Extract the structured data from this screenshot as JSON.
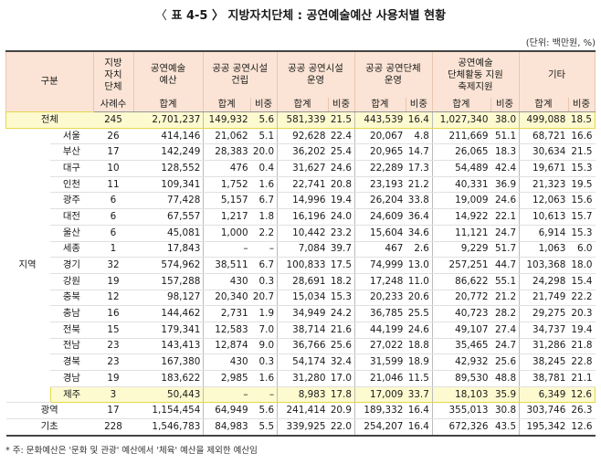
{
  "title": {
    "open": "〈",
    "main": " 표 4-5 〉 지방자치단체 : 공연예술예산 사용처별 현황"
  },
  "unit": "(단위: 백만원, %)",
  "header": {
    "gubun": "구분",
    "count_col": "지방\n자치\n단체",
    "budget_col": "공연예술\n예산",
    "facility_build": "공공 공연시설\n건립",
    "facility_op": "공공 공연시설\n운영",
    "group_op": "공공 공연단체\n운영",
    "support": "공연예술\n단체활동 지원\n축제지원",
    "etc": "기타",
    "sub_count": "사례수",
    "sub_sum": "합계",
    "sub_ratio": "비중"
  },
  "rows": [
    {
      "grp": "전체",
      "name": "",
      "vals": [
        "245",
        "2,701,237",
        "149,932",
        "5.6",
        "581,339",
        "21.5",
        "443,539",
        "16.4",
        "1,027,340",
        "38.0",
        "499,088",
        "18.5"
      ],
      "hl": true,
      "total": true
    },
    {
      "grp": "지역",
      "name": "서울",
      "vals": [
        "26",
        "414,146",
        "21,062",
        "5.1",
        "92,628",
        "22.4",
        "20,067",
        "4.8",
        "211,669",
        "51.1",
        "68,721",
        "16.6"
      ]
    },
    {
      "name": "부산",
      "vals": [
        "17",
        "142,249",
        "28,383",
        "20.0",
        "36,202",
        "25.4",
        "20,965",
        "14.7",
        "26,065",
        "18.3",
        "30,634",
        "21.5"
      ]
    },
    {
      "name": "대구",
      "vals": [
        "10",
        "128,552",
        "476",
        "0.4",
        "31,627",
        "24.6",
        "22,289",
        "17.3",
        "54,489",
        "42.4",
        "19,671",
        "15.3"
      ]
    },
    {
      "name": "인천",
      "vals": [
        "11",
        "109,341",
        "1,752",
        "1.6",
        "22,741",
        "20.8",
        "23,193",
        "21.2",
        "40,331",
        "36.9",
        "21,323",
        "19.5"
      ]
    },
    {
      "name": "광주",
      "vals": [
        "6",
        "77,428",
        "5,157",
        "6.7",
        "14,996",
        "19.4",
        "26,204",
        "33.8",
        "19,009",
        "24.6",
        "12,063",
        "15.6"
      ]
    },
    {
      "name": "대전",
      "vals": [
        "6",
        "67,557",
        "1,217",
        "1.8",
        "16,196",
        "24.0",
        "24,609",
        "36.4",
        "14,922",
        "22.1",
        "10,613",
        "15.7"
      ]
    },
    {
      "name": "울산",
      "vals": [
        "6",
        "45,081",
        "1,000",
        "2.2",
        "10,442",
        "23.2",
        "15,604",
        "34.6",
        "11,121",
        "24.7",
        "6,914",
        "15.3"
      ]
    },
    {
      "name": "세종",
      "vals": [
        "1",
        "17,843",
        "–",
        "–",
        "7,084",
        "39.7",
        "467",
        "2.6",
        "9,229",
        "51.7",
        "1,063",
        "6.0"
      ]
    },
    {
      "name": "경기",
      "vals": [
        "32",
        "574,962",
        "38,511",
        "6.7",
        "100,833",
        "17.5",
        "74,999",
        "13.0",
        "257,251",
        "44.7",
        "103,368",
        "18.0"
      ]
    },
    {
      "name": "강원",
      "vals": [
        "19",
        "157,288",
        "430",
        "0.3",
        "28,691",
        "18.2",
        "17,248",
        "11.0",
        "86,622",
        "55.1",
        "24,298",
        "15.4"
      ]
    },
    {
      "name": "충북",
      "vals": [
        "12",
        "98,127",
        "20,340",
        "20.7",
        "15,034",
        "15.3",
        "20,233",
        "20.6",
        "20,772",
        "21.2",
        "21,749",
        "22.2"
      ]
    },
    {
      "name": "충남",
      "vals": [
        "16",
        "144,462",
        "2,731",
        "1.9",
        "34,949",
        "24.2",
        "36,785",
        "25.5",
        "40,723",
        "28.2",
        "29,275",
        "20.3"
      ]
    },
    {
      "name": "전북",
      "vals": [
        "15",
        "179,341",
        "12,583",
        "7.0",
        "38,714",
        "21.6",
        "44,199",
        "24.6",
        "49,107",
        "27.4",
        "34,737",
        "19.4"
      ]
    },
    {
      "name": "전남",
      "vals": [
        "23",
        "143,413",
        "12,874",
        "9.0",
        "36,766",
        "25.6",
        "27,022",
        "18.8",
        "35,465",
        "24.7",
        "31,286",
        "21.8"
      ]
    },
    {
      "name": "경북",
      "vals": [
        "23",
        "167,380",
        "430",
        "0.3",
        "54,174",
        "32.4",
        "31,599",
        "18.9",
        "42,932",
        "25.6",
        "38,245",
        "22.8"
      ]
    },
    {
      "name": "경남",
      "vals": [
        "19",
        "183,622",
        "2,985",
        "1.6",
        "31,280",
        "17.0",
        "21,046",
        "11.5",
        "89,530",
        "48.8",
        "38,781",
        "21.1"
      ]
    },
    {
      "name": "제주",
      "vals": [
        "3",
        "50,443",
        "–",
        "–",
        "8,983",
        "17.8",
        "17,009",
        "33.7",
        "18,103",
        "35.9",
        "6,349",
        "12.6"
      ],
      "hl": true
    },
    {
      "grp": "광역",
      "name": "",
      "vals": [
        "17",
        "1,154,454",
        "64,949",
        "5.6",
        "241,414",
        "20.9",
        "189,332",
        "16.4",
        "355,013",
        "30.8",
        "303,746",
        "26.3"
      ]
    },
    {
      "grp": "기초",
      "name": "",
      "vals": [
        "228",
        "1,546,783",
        "84,983",
        "5.5",
        "339,925",
        "22.0",
        "254,207",
        "16.4",
        "672,326",
        "43.5",
        "195,342",
        "12.6"
      ],
      "last": true
    }
  ],
  "note": "* 주: 문화예산은 '문화 및 관광' 예산에서 '체육' 예산을 제외한 예산임"
}
